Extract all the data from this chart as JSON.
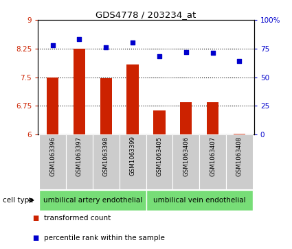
{
  "title": "GDS4778 / 203234_at",
  "samples": [
    "GSM1063396",
    "GSM1063397",
    "GSM1063398",
    "GSM1063399",
    "GSM1063405",
    "GSM1063406",
    "GSM1063407",
    "GSM1063408"
  ],
  "bar_values": [
    7.5,
    8.25,
    7.47,
    7.83,
    6.63,
    6.85,
    6.84,
    6.02
  ],
  "scatter_values": [
    78,
    83,
    76,
    80,
    68,
    72,
    71,
    64
  ],
  "bar_color": "#cc2200",
  "scatter_color": "#0000cc",
  "ylim_left": [
    6,
    9
  ],
  "ylim_right": [
    0,
    100
  ],
  "yticks_left": [
    6,
    6.75,
    7.5,
    8.25,
    9
  ],
  "yticks_right": [
    0,
    25,
    50,
    75,
    100
  ],
  "ytick_labels_left": [
    "6",
    "6.75",
    "7.5",
    "8.25",
    "9"
  ],
  "ytick_labels_right": [
    "0",
    "25",
    "50",
    "75",
    "100%"
  ],
  "group1_label": "umbilical artery endothelial",
  "group2_label": "umbilical vein endothelial",
  "group1_indices": [
    0,
    1,
    2,
    3
  ],
  "group2_indices": [
    4,
    5,
    6,
    7
  ],
  "cell_type_label": "cell type",
  "legend_bar_label": "transformed count",
  "legend_scatter_label": "percentile rank within the sample",
  "bar_width": 0.45,
  "grid_lines": [
    6.75,
    7.5,
    8.25
  ],
  "bg_color": "#ffffff",
  "tick_area_color": "#cccccc",
  "group_box_color": "#77dd77"
}
